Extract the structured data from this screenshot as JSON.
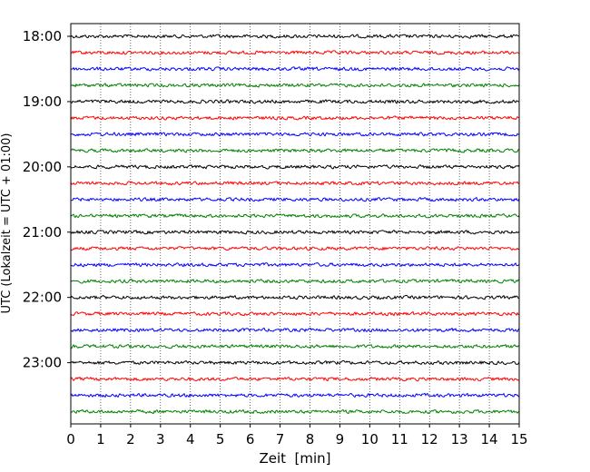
{
  "chart_data": {
    "type": "line",
    "title": "",
    "xlabel": "Zeit  [min]",
    "ylabel": "UTC (Lokalzeit = UTC + 01:00)",
    "xlim": [
      0,
      15
    ],
    "x_ticks": [
      "0",
      "1",
      "2",
      "3",
      "4",
      "5",
      "6",
      "7",
      "8",
      "9",
      "10",
      "11",
      "12",
      "13",
      "14",
      "15"
    ],
    "y_ticks": [
      "18:00",
      "19:00",
      "20:00",
      "21:00",
      "22:00",
      "23:00"
    ],
    "grid": "vertical dotted lines at each minute",
    "trace_interval_minutes": 15,
    "trace_start": "18:00",
    "trace_count": 24,
    "trace_colors": [
      "#000000",
      "#ff0000",
      "#0000ff",
      "#008000"
    ]
  }
}
